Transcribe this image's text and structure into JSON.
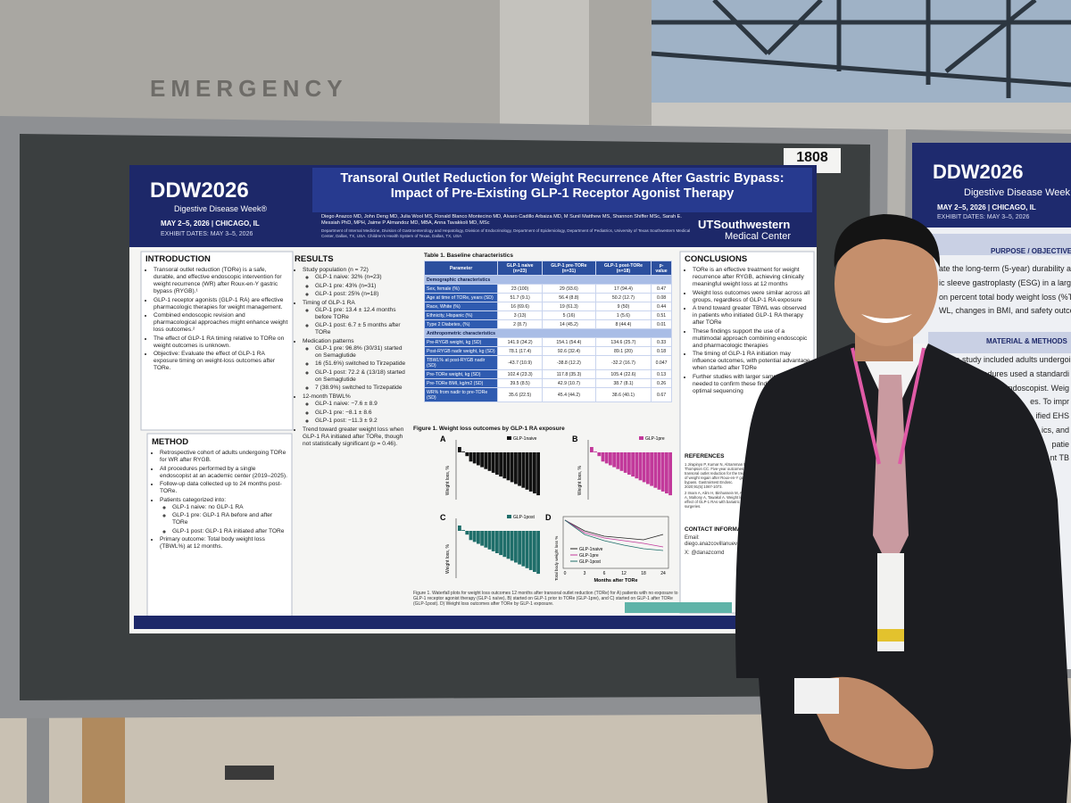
{
  "venue": {
    "sign": "EMERGENCY",
    "board_number": "1808"
  },
  "poster": {
    "header": {
      "logo": "DDW2026",
      "tagline": "Digestive Disease Week®",
      "dates": "MAY 2–5, 2026 | CHICAGO, IL",
      "exhibit": "EXHIBIT DATES: MAY 3–5, 2026",
      "title": "Transoral Outlet Reduction for Weight Recurrence After Gastric Bypass: Impact of Pre-Existing GLP-1 Receptor Agonist Therapy",
      "authors": "Diego Anazco MD, John Deng MD, Julia Wool MS, Ronald Blanco Montecino MD, Alvaro Cadillo Arbaiza MD, M Sunil Matthew MS, Shannon Shiffer MSc, Sarah E. Messiah PhD, MPH, Jaime P Almandoz MD, MBA, Anna Tavakkoli MD, MSc",
      "affiliations": "Department of Internal Medicine, Division of Gastroenterology and Hepatology, Division of Endocrinology, Department of Epidemiology, Department of Pediatrics, University of Texas Southwestern Medical Center, Dallas, TX, USA. Children's Health System of Texas, Dallas, TX, USA",
      "institution": "UTSouthwestern",
      "institution_sub": "Medical Center"
    },
    "introduction": {
      "heading": "INTRODUCTION",
      "bullets": [
        {
          "text": "Transoral outlet reduction (TORe) is a safe, durable, and effective endoscopic intervention for weight recurrence (WR) after Roux-en-Y gastric bypass (RYGB).¹"
        },
        {
          "text": "GLP-1 receptor agonists (GLP-1 RA) are effective pharmacologic therapies for weight management."
        },
        {
          "text": "Combined endoscopic revision and pharmacological approaches might enhance weight loss outcomes.²"
        },
        {
          "text": "The effect of GLP-1 RA timing relative to TORe on weight outcomes is unknown."
        },
        {
          "text": "Objective: Evaluate the effect of GLP-1 RA exposure timing on weight-loss outcomes after TORe."
        }
      ]
    },
    "method": {
      "heading": "METHOD",
      "bullets": [
        {
          "text": "Retrospective cohort of adults undergoing TORe for WR after RYGB."
        },
        {
          "text": "All procedures performed by a single endoscopist at an academic center (2019–2025)."
        },
        {
          "text": "Follow-up data collected up to 24 months post-TORe."
        },
        {
          "text": "Patients categorized into:",
          "items": [
            "GLP-1 naive: no GLP-1 RA",
            "GLP-1 pre: GLP-1 RA before and after TORe",
            "GLP-1 post: GLP-1 RA initiated after TORe"
          ]
        },
        {
          "text": "Primary outcome: Total body weight loss (TBWL%) at 12 months."
        }
      ]
    },
    "results": {
      "heading": "RESULTS",
      "bullets": [
        {
          "text": "Study population (n = 72)",
          "items": [
            "GLP-1 naive: 32% (n=23)",
            "GLP-1 pre: 43% (n=31)",
            "GLP-1 post: 25% (n=18)"
          ]
        },
        {
          "text": "Timing of GLP-1 RA",
          "items": [
            "GLP-1 pre: 13.4 ± 12.4 months before TORe",
            "GLP-1 post: 6.7 ± 5 months after TORe"
          ]
        },
        {
          "text": "Medication patterns",
          "items": [
            "GLP-1 pre: 96.8% (30/31) started on Semaglutide",
            "16 (51.6%) switched to Tirzepatide",
            "GLP-1 post: 72.2 & (13/18) started on Semaglutide",
            "7 (38.9%) switched to Tirzepatide"
          ]
        },
        {
          "text": "12-month TBWL%",
          "items": [
            "GLP-1 naive: −7.6 ± 8.9",
            "GLP-1 pre: −8.1 ± 8.6",
            "GLP-1 post: −11.3 ± 9.2"
          ]
        },
        {
          "text": "Trend toward greater weight loss when GLP-1 RA initiated after TORe, though not statistically significant (p = 0.46)."
        }
      ]
    },
    "table": {
      "title": "Table 1. Baseline characteristics",
      "columns": [
        "Parameter",
        "GLP-1 naive (n=23)",
        "GLP-1 pre-TORe (n=31)",
        "GLP-1 post-TORe (n=18)",
        "p-value"
      ],
      "rows": [
        [
          "Demographic characteristics"
        ],
        [
          "Sex, female (%)",
          "23 (100)",
          "29 (93.6)",
          "17 (94.4)",
          "0.47"
        ],
        [
          "Age at time of TORe, years (SD)",
          "51.7 (9.1)",
          "56.4 (8.8)",
          "50.2 (12.7)",
          "0.08"
        ],
        [
          "Race, White (%)",
          "16 (69.6)",
          "19 (61.3)",
          "9 (50)",
          "0.44"
        ],
        [
          "Ethnicity, Hispanic (%)",
          "3 (13)",
          "5 (16)",
          "1 (5.6)",
          "0.51"
        ],
        [
          "Type 2 Diabetes, (%)",
          "2 (8.7)",
          "14 (45.2)",
          "8 (44.4)",
          "0.01"
        ],
        [
          "Anthropometric characteristics"
        ],
        [
          "Pre-RYGB weight, kg (SD)",
          "141.9 (34.2)",
          "154.1 (54.4)",
          "134.6 (25.7)",
          "0.33"
        ],
        [
          "Post-RYGB nadir weight, kg (SD)",
          "78.1 (17.4)",
          "92.6 (32.4)",
          "89.1 (20)",
          "0.18"
        ],
        [
          "TBWL% at post-RYGB nadir (SD)",
          "-43.7 (10.9)",
          "-38.8 (12.2)",
          "-32.2 (16.7)",
          "0.047"
        ],
        [
          "Pre-TORe weight, kg (SD)",
          "102.4 (23.3)",
          "117.8 (35.3)",
          "105.4 (22.6)",
          "0.13"
        ],
        [
          "Pre-TORe BMI, kg/m2 (SD)",
          "39.5 (8.5)",
          "42.9 (10.7)",
          "38.7 (8.1)",
          "0.26"
        ],
        [
          "WR% from nadir to pre-TORe (SD)",
          "35.6 (22.5)",
          "45.4 (44.2)",
          "38.6 (40.1)",
          "0.67"
        ]
      ]
    },
    "figure": {
      "title": "Figure 1. Weight loss outcomes by GLP-1 RA exposure",
      "panels": [
        {
          "label": "A",
          "legend": "GLP-1naive",
          "ylabel": "Weight loss, %"
        },
        {
          "label": "B",
          "legend": "GLP-1pre",
          "ylabel": "Weight loss, %"
        },
        {
          "label": "C",
          "legend": "GLP-1post",
          "ylabel": "Weight loss, %"
        }
      ],
      "panel_d": {
        "label": "D",
        "ylabel": "Total body weight loss %",
        "xlabel": "Months after TORe",
        "xticks": [
          "0",
          "3",
          "6",
          "12",
          "18",
          "24"
        ],
        "legend": [
          "GLP-1naive",
          "GLP-1pre",
          "GLP-1post"
        ]
      },
      "caption": "Figure 1. Waterfall plots for weight loss outcomes 12 months after transoral outlet reduction (TORe) for A) patients with no exposure to GLP-1 receptor agonist therapy (GLP-1 naïve), B) started on GLP-1 prior to TORe (GLP-1pre), and C) started on GLP-1 after TORe (GLP-1post). D) Weight loss outcomes after TORe by GLP-1 exposure."
    },
    "conclusions": {
      "heading": "CONCLUSIONS",
      "bullets": [
        {
          "text": "TORe is an effective treatment for weight recurrence after RYGB, achieving clinically meaningful weight loss at 12 months"
        },
        {
          "text": "Weight loss outcomes were similar across all groups, regardless of GLP-1 RA exposure"
        },
        {
          "text": "A trend toward greater TBWL was observed in patients who initiated GLP-1 RA therapy after TORe"
        },
        {
          "text": "These findings support the use of a multimodal approach combining endoscopic and pharmacologic therapies"
        },
        {
          "text": "The timing of GLP-1 RA initiation may influence outcomes, with potential advantage when started after TORe"
        },
        {
          "text": "Further studies with larger sample sizes are needed to confirm these findings and define optimal sequencing"
        }
      ]
    },
    "references": {
      "heading": "REFERENCES",
      "items": [
        "1 Jirapinyo P, Kumar N, AlSamman MA, Thompson CC. Five-year outcomes of transoral outlet reduction for the treatment of weight regain after Roux-en-Y gastric bypass. Gastrointest Endosc. 2020;91(5):1067-1073.",
        "2 Imam A, Alim H, Binhussein M, Alzahrani A, Mahony A, Tawakol A. Weight loss effect of GLP-1 RAs with bariatric surgeries."
      ]
    },
    "contact": {
      "heading": "CONTACT INFORMATION",
      "email_label": "Email:",
      "email": "diego.anazcovillanueva@utsouthwestern.edu",
      "x": "X: @danazcomd"
    }
  },
  "neighbor_poster": {
    "logo": "DDW2026",
    "tagline": "Digestive Disease Week",
    "dates": "MAY 2–5, 2026 | CHICAGO, IL",
    "exhibit": "EXHIBIT DATES: MAY 3–5, 2026",
    "purpose_heading": "PURPOSE / OBJECTIVES",
    "purpose_lines": [
      "ate the long-term (5-year) durability and c",
      "ic sleeve gastroplasty (ESG) in a large",
      "on percent total body weight loss (%TB",
      "WL, changes in BMI, and safety outcomes"
    ],
    "methods_heading": "MATERIAL & METHODS",
    "methods_lines": [
      "ective study included adults undergoing",
      "All procedures used a standardi",
      "endoscopist. Weig",
      "es. To impr",
      "ified EHS",
      "ics, and",
      "patie",
      "nt TB"
    ]
  }
}
